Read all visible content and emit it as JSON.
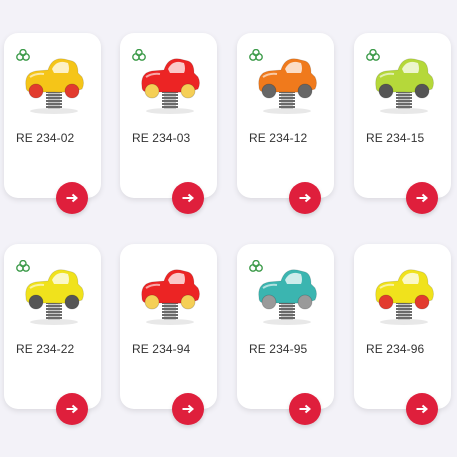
{
  "products": [
    {
      "code": "RE 234-02",
      "body": "#f5c518",
      "wheels": "#e23b2e",
      "cloud": true
    },
    {
      "code": "RE 234-03",
      "body": "#ec2424",
      "wheels": "#f5cf56",
      "cloud": true
    },
    {
      "code": "RE 234-12",
      "body": "#f07a1c",
      "wheels": "#666666",
      "cloud": true
    },
    {
      "code": "RE 234-15",
      "body": "#b5d83a",
      "wheels": "#555555",
      "cloud": true
    },
    {
      "code": "RE 234-22",
      "body": "#f0e21c",
      "wheels": "#555555",
      "cloud": true
    },
    {
      "code": "RE 234-94",
      "body": "#ec2424",
      "wheels": "#f5cf56",
      "cloud": false
    },
    {
      "code": "RE 234-95",
      "body": "#3bb5b0",
      "wheels": "#9a9a9a",
      "cloud": true
    },
    {
      "code": "RE 234-96",
      "body": "#f0e21c",
      "wheels": "#e23b2e",
      "cloud": false
    }
  ],
  "icons": {
    "details_button": "arrow-right-icon",
    "eco_badge": "eco-leaves-icon",
    "product_image": "spring-rider-car"
  },
  "colors": {
    "accent": "#df1f3c",
    "eco_green": "#3d9b4a"
  }
}
